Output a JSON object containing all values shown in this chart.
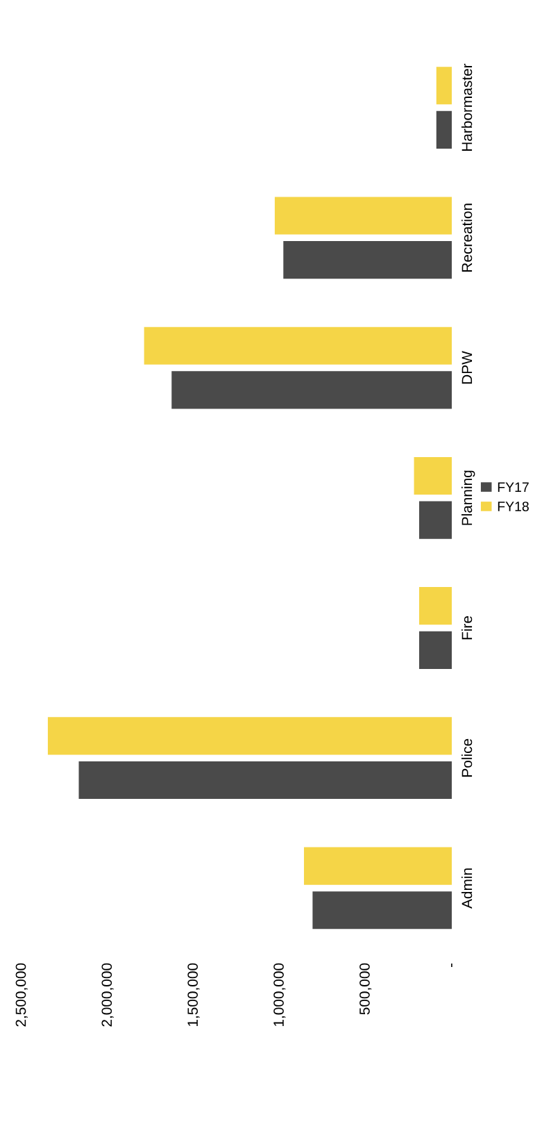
{
  "chart_data": {
    "type": "bar",
    "orientation": "horizontal",
    "categories": [
      "Harbormaster",
      "Recreation",
      "DPW",
      "Planning",
      "Fire",
      "Police",
      "Admin"
    ],
    "series": [
      {
        "name": "FY17",
        "color": "#4a4a4a",
        "values": [
          90000,
          980000,
          1630000,
          190000,
          190000,
          2170000,
          810000
        ]
      },
      {
        "name": "FY18",
        "color": "#f5d547",
        "values": [
          90000,
          1030000,
          1790000,
          220000,
          190000,
          2350000,
          860000
        ]
      }
    ],
    "xlim": [
      2500000,
      0
    ],
    "xticks": [
      {
        "value": 0,
        "label": "-"
      },
      {
        "value": 500000,
        "label": "500,000"
      },
      {
        "value": 1000000,
        "label": "1,000,000"
      },
      {
        "value": 1500000,
        "label": "1,500,000"
      },
      {
        "value": 2000000,
        "label": "2,000,000"
      },
      {
        "value": 2500000,
        "label": "2,500,000"
      }
    ],
    "grid": false,
    "legend": "right"
  }
}
